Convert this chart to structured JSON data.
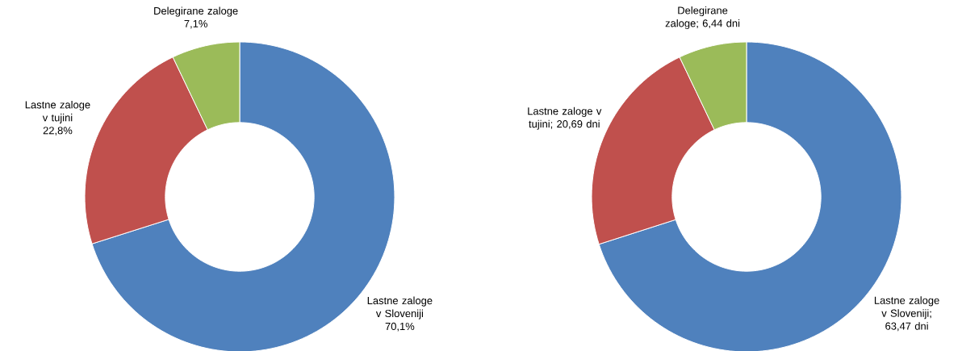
{
  "chart_data": [
    {
      "type": "donut",
      "categories": [
        "Lastne zaloge v Sloveniji",
        "Lastne zaloge v tujini",
        "Delegirane zaloge"
      ],
      "values": [
        70.1,
        22.8,
        7.1
      ],
      "value_labels": [
        "70,1%",
        "22,8%",
        "7,1%"
      ],
      "colors": [
        "#4f81bd",
        "#c0504d",
        "#9bbb59"
      ]
    },
    {
      "type": "donut",
      "categories": [
        "Lastne zaloge v Sloveniji",
        "Lastne zaloge v tujini",
        "Delegirane zaloge"
      ],
      "values": [
        63.47,
        20.69,
        6.44
      ],
      "value_labels": [
        "; 63,47 dni",
        "; 20,69 dni",
        "; 6,44 dni"
      ],
      "colors": [
        "#4f81bd",
        "#c0504d",
        "#9bbb59"
      ]
    }
  ]
}
